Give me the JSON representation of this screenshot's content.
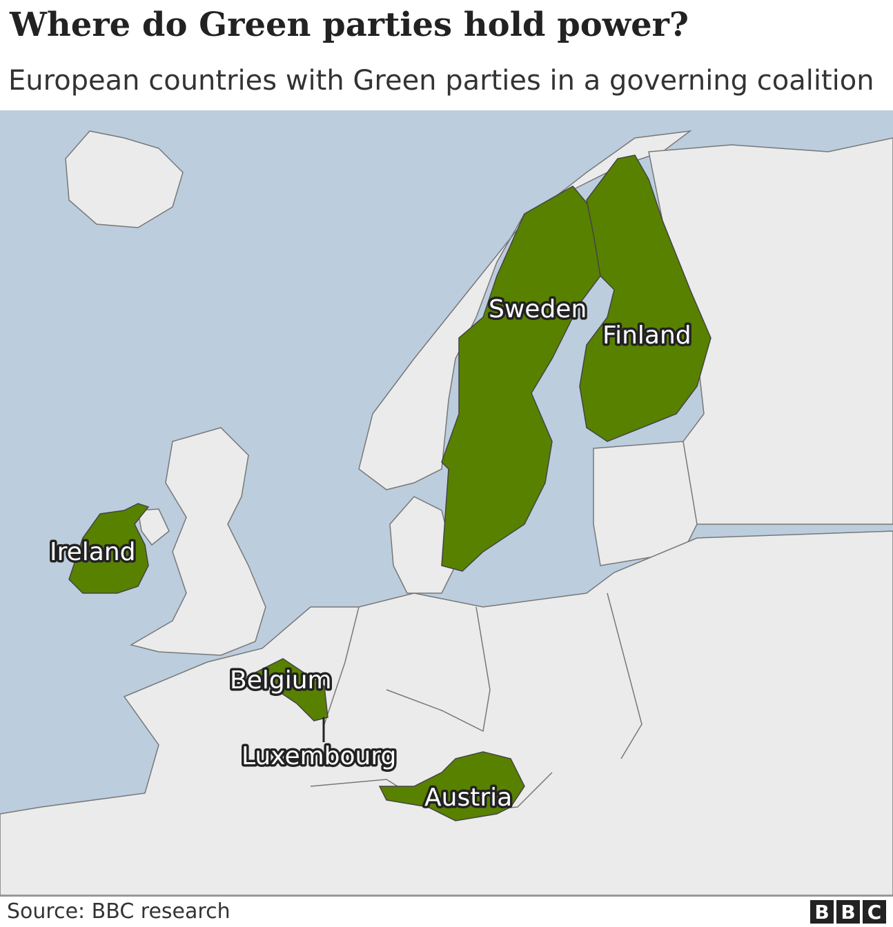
{
  "title": "Where do Green parties hold power?",
  "subtitle": "European countries with Green parties in a governing coalition",
  "colors": {
    "sea": "#bccddd",
    "land": "#ebebeb",
    "green": "#588100",
    "border": "#777777"
  },
  "labels": {
    "sweden": "Sweden",
    "finland": "Finland",
    "ireland": "Ireland",
    "belgium": "Belgium",
    "luxembourg": "Luxembourg",
    "austria": "Austria"
  },
  "source": "Source: BBC research",
  "logo": [
    "B",
    "B",
    "C"
  ]
}
